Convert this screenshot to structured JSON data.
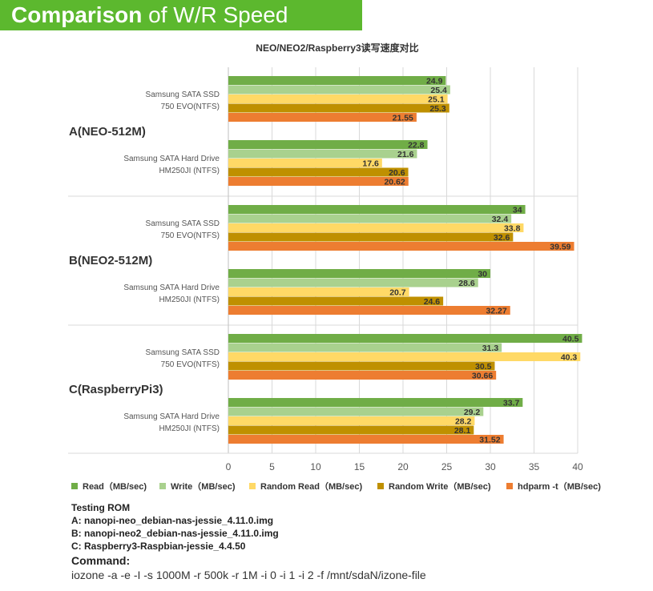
{
  "banner": {
    "bold": "Comparison",
    "rest": " of W/R Speed"
  },
  "colors": {
    "series": [
      "#70ad47",
      "#a9d18e",
      "#ffd966",
      "#bf9000",
      "#ed7d31"
    ],
    "banner": "#5cb82e"
  },
  "chart_data": {
    "type": "bar",
    "orientation": "horizontal",
    "title": "NEO/NEO2/Raspberry3读写速度对比",
    "xlim": [
      0,
      40
    ],
    "xticks": [
      0,
      5,
      10,
      15,
      20,
      25,
      30,
      35,
      40
    ],
    "legend_position": "bottom",
    "series_names": [
      "Read（MB/sec)",
      "Write（MB/sec)",
      "Random Read（MB/sec)",
      "Random Write（MB/sec)",
      "hdparm -t（MB/sec)"
    ],
    "groups": [
      {
        "label": "A(NEO-512M)",
        "devices": [
          {
            "label": [
              "Samsung SATA SSD",
              "750 EVO(NTFS)"
            ],
            "values": [
              24.9,
              25.4,
              25.1,
              25.3,
              21.55
            ],
            "value_labels": [
              "24.9",
              "25.4",
              "25.1",
              "25.3",
              "21.55"
            ]
          },
          {
            "label": [
              "Samsung SATA Hard Drive",
              "HM250JI (NTFS)"
            ],
            "values": [
              22.8,
              21.6,
              17.6,
              20.6,
              20.62
            ],
            "value_labels": [
              "22.8",
              "21.6",
              "17.6",
              "20.6",
              "20.62"
            ]
          }
        ]
      },
      {
        "label": "B(NEO2-512M)",
        "devices": [
          {
            "label": [
              "Samsung SATA SSD",
              "750 EVO(NTFS)"
            ],
            "values": [
              34,
              32.4,
              33.8,
              32.6,
              39.59
            ],
            "value_labels": [
              "34",
              "32.4",
              "33.8",
              "32.6",
              "39.59"
            ]
          },
          {
            "label": [
              "Samsung SATA Hard Drive",
              "HM250JI (NTFS)"
            ],
            "values": [
              30,
              28.6,
              20.7,
              24.6,
              32.27
            ],
            "value_labels": [
              "30",
              "28.6",
              "20.7",
              "24.6",
              "32.27"
            ]
          }
        ]
      },
      {
        "label": "C(RaspberryPi3)",
        "devices": [
          {
            "label": [
              "Samsung SATA SSD",
              "750 EVO(NTFS)"
            ],
            "values": [
              40.5,
              31.3,
              40.3,
              30.5,
              30.66
            ],
            "value_labels": [
              "40.5",
              "31.3",
              "40.3",
              "30.5",
              "30.66"
            ]
          },
          {
            "label": [
              "Samsung SATA Hard Drive",
              "HM250JI (NTFS)"
            ],
            "values": [
              33.7,
              29.2,
              28.2,
              28.1,
              31.52
            ],
            "value_labels": [
              "33.7",
              "29.2",
              "28.2",
              "28.1",
              "31.52"
            ]
          }
        ]
      }
    ]
  },
  "notes": {
    "rom_heading": "Testing ROM",
    "rom_a": "A: nanopi-neo_debian-nas-jessie_4.11.0.img",
    "rom_b": "B: nanopi-neo2_debian-nas-jessie_4.11.0.img",
    "rom_c": "C: Raspberry3-Raspbian-jessie_4.4.50",
    "command_heading": "Command:",
    "command": "iozone -a -e -I -s 1000M -r 500k -r 1M -i 0 -i 1 -i 2 -f /mnt/sdaN/izone-file"
  }
}
